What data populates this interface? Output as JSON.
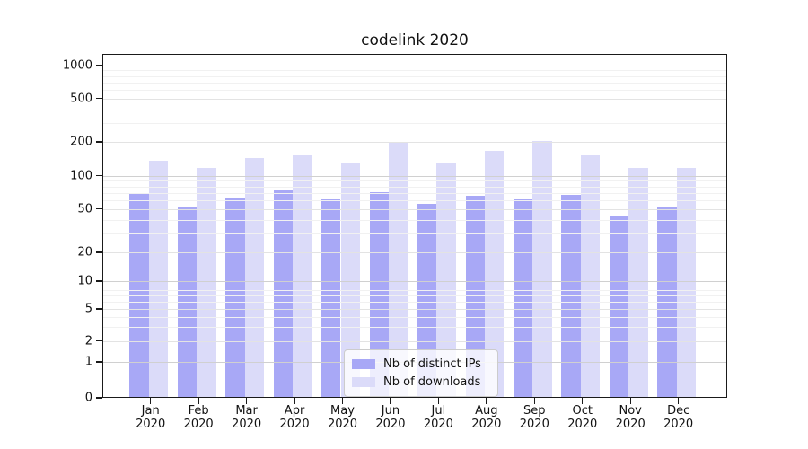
{
  "chart_data": {
    "type": "bar",
    "title": "codelink 2020",
    "categories": [
      "Jan",
      "Feb",
      "Mar",
      "Apr",
      "May",
      "Jun",
      "Jul",
      "Aug",
      "Sep",
      "Oct",
      "Nov",
      "Dec"
    ],
    "category_year": "2020",
    "series": [
      {
        "name": "Nb of distinct IPs",
        "color": "#a8a8f6",
        "values": [
          70,
          52,
          62,
          73,
          61,
          71,
          56,
          66,
          61,
          67,
          43,
          52
        ]
      },
      {
        "name": "Nb of downloads",
        "color": "#dbdbf9",
        "values": [
          135,
          118,
          145,
          152,
          131,
          198,
          129,
          167,
          204,
          152,
          117,
          117
        ]
      }
    ],
    "yscale": "symlog (linear 0-1, logarithmic above 1)",
    "yticks": [
      0,
      1,
      2,
      5,
      10,
      20,
      50,
      100,
      200,
      500,
      1000
    ],
    "yminorticks": [
      3,
      4,
      6,
      7,
      8,
      9,
      30,
      40,
      60,
      70,
      80,
      90,
      300,
      400,
      600,
      700,
      800,
      900
    ],
    "ylim": [
      0,
      1300
    ],
    "xlabel": "",
    "ylabel": "",
    "grid": "horizontal major and minor gridlines",
    "legend_position": "lower center"
  },
  "colors": {
    "grid_major_power10": "#d0d0d0",
    "grid_major_other": "#e3e3e3",
    "grid_minor": "#f1f1f1",
    "axis": "#1a1a1a",
    "background": "#ffffff"
  }
}
